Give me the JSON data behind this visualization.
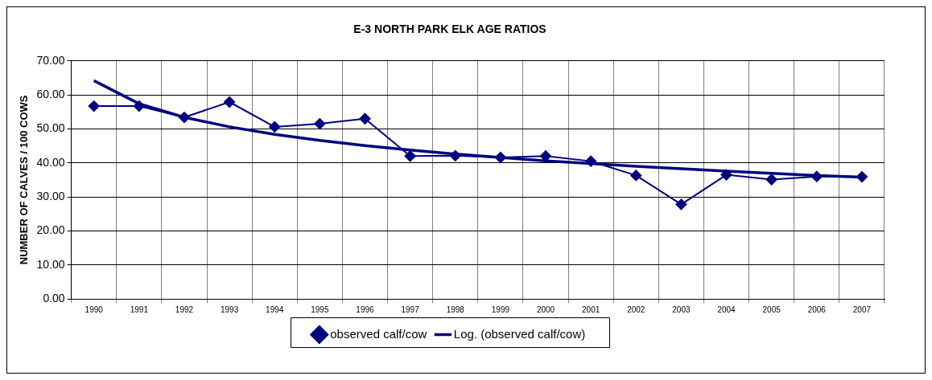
{
  "chart_data": {
    "type": "line",
    "title": "E-3 NORTH PARK ELK AGE RATIOS",
    "ylabel": "NUMBER OF CALVES / 100 COWS",
    "categories": [
      "1990",
      "1991",
      "1992",
      "1993",
      "1994",
      "1995",
      "1996",
      "1997",
      "1998",
      "1999",
      "2000",
      "2001",
      "2002",
      "2003",
      "2004",
      "2005",
      "2006",
      "2007"
    ],
    "series": [
      {
        "name": "observed calf/cow",
        "color": "#000080",
        "marker": "diamond",
        "values": [
          56.7,
          56.7,
          53.4,
          57.9,
          50.6,
          51.5,
          53.0,
          42.0,
          42.1,
          41.6,
          42.0,
          40.5,
          36.3,
          27.8,
          36.5,
          35.1,
          36.0,
          35.9
        ]
      },
      {
        "name": "Log. (observed calf/cow)",
        "color": "#000080",
        "marker": "none",
        "values": [
          64.2,
          57.4,
          53.4,
          50.6,
          48.4,
          46.6,
          45.1,
          43.8,
          42.6,
          41.6,
          40.6,
          39.8,
          39.0,
          38.3,
          37.6,
          36.9,
          36.3,
          35.8
        ]
      }
    ],
    "ylim": [
      0,
      70
    ],
    "yticks": [
      {
        "value": 0,
        "label": "0.00"
      },
      {
        "value": 10,
        "label": "10.00"
      },
      {
        "value": 20,
        "label": "20.00"
      },
      {
        "value": 30,
        "label": "30.00"
      },
      {
        "value": 40,
        "label": "40.00"
      },
      {
        "value": 50,
        "label": "50.00"
      },
      {
        "value": 60,
        "label": "60.00"
      },
      {
        "value": 70,
        "label": "70.00"
      }
    ],
    "grid": true,
    "legend": "bottom"
  }
}
